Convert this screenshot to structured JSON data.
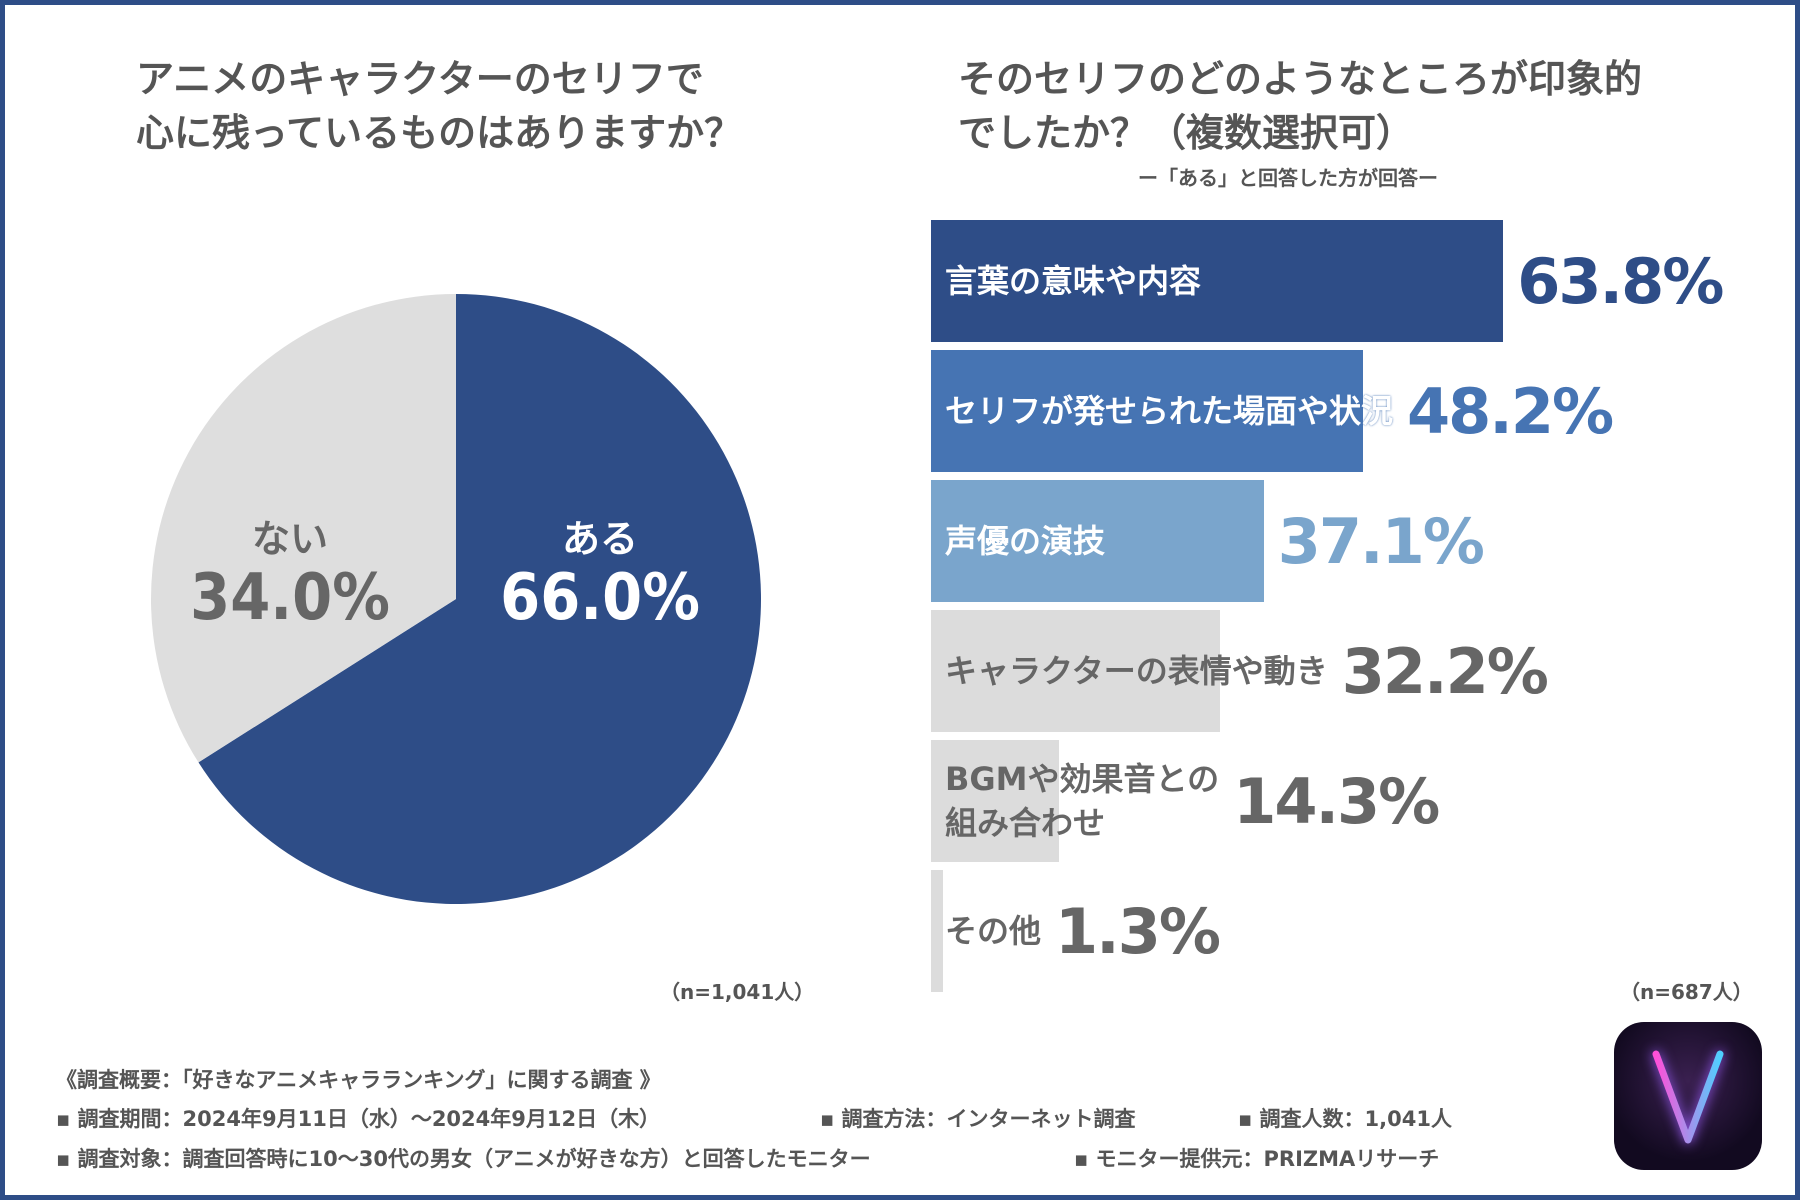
{
  "left": {
    "title_line1": "アニメのキャラクターのセリフで",
    "title_line2": "心に残っているものはありますか？",
    "n_note": "（n=1,041人）"
  },
  "right": {
    "title_line1": "そのセリフのどのようなところが印象的",
    "title_line2": "でしたか？（複数選択可）",
    "subtitle": "ー「ある」と回答した方が回答ー",
    "n_note": "（n=687人）"
  },
  "chart_data": [
    {
      "type": "pie",
      "title": "アニメのキャラクターのセリフで心に残っているものはありますか？",
      "slices": [
        {
          "label": "ある",
          "value": 66.0,
          "display": "66.0%",
          "color": "#2e4d87",
          "text_color": "#ffffff"
        },
        {
          "label": "ない",
          "value": 34.0,
          "display": "34.0%",
          "color": "#dedede",
          "text_color": "#666666"
        }
      ]
    },
    {
      "type": "bar",
      "orientation": "horizontal",
      "title": "そのセリフのどのようなところが印象的でしたか？（複数選択可）",
      "xlim": [
        0,
        100
      ],
      "categories": [
        "言葉の意味や内容",
        "セリフが発せられた場面や状況",
        "声優の演技",
        "キャラクターの表情や動き",
        "BGMや効果音との\n組み合わせ",
        "その他"
      ],
      "values": [
        63.8,
        48.2,
        37.1,
        32.2,
        14.3,
        1.3
      ],
      "labels": [
        "63.8%",
        "48.2%",
        "37.1%",
        "32.2%",
        "14.3%",
        "1.3%"
      ],
      "bar_colors": [
        "#2e4d87",
        "#4674b3",
        "#7aa5cc",
        "#dcdcdc",
        "#dcdcdc",
        "#dcdcdc"
      ],
      "text_colors": [
        "#ffffff",
        "#ffffff",
        "#ffffff",
        "#666666",
        "#666666",
        "#666666"
      ],
      "value_colors": [
        "#2e4d87",
        "#4674b3",
        "#7aa5cc",
        "#666666",
        "#666666",
        "#666666"
      ]
    }
  ],
  "footer": {
    "heading": "《調査概要：「好きなアニメキャラランキング」に関する調査 》",
    "period": "▪ 調査期間：2024年9月11日（水）～2024年9月12日（木）",
    "method": "▪ 調査方法：インターネット調査",
    "count": "▪ 調査人数：1,041人",
    "target": "▪ 調査対象：調査回答時に10～30代の男女（アニメが好きな方）と回答したモニター",
    "provider": "▪ モニター提供元：PRIZMAリサーチ"
  },
  "logo": {
    "letter": "V"
  }
}
